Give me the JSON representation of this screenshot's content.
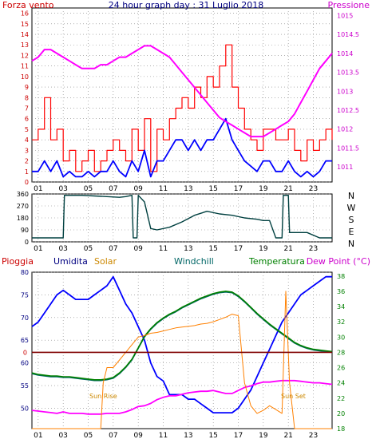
{
  "header": {
    "left_label": "Forza vento",
    "title": "24 hour graph day : 31 Luglio 2018",
    "right_label": "Pressione"
  },
  "direction_labels": [
    "N",
    "W",
    "S",
    "E",
    "N"
  ],
  "legend": {
    "pioggia": "Pioggia",
    "umidita": "Umidita",
    "solar": "Solar",
    "windchill": "Windchill",
    "temperatura": "Temperatura",
    "dewpoint": "Dew Point (°C)"
  },
  "annotations": {
    "sun_rise": "Sun Rise",
    "sun_set": "Sun Set"
  },
  "colors": {
    "wind_gust": "#ff0000",
    "wind_avg": "#0000ff",
    "pressure": "#ff00ff",
    "direction": "#004040",
    "humidity": "#0000ff",
    "solar": "#ff8000",
    "windchill": "#006666",
    "temperature": "#008000",
    "dewpoint": "#ff00ff",
    "rain": "#800000"
  },
  "chart_data": [
    {
      "type": "line",
      "x_ticks": [
        "01",
        "03",
        "05",
        "07",
        "09",
        "11",
        "13",
        "15",
        "17",
        "19",
        "21",
        "23"
      ],
      "left_axis": {
        "ylim": [
          0,
          16.5
        ],
        "ticks": [
          0,
          1,
          2,
          3,
          4,
          5,
          6,
          7,
          8,
          9,
          10,
          11,
          12,
          13,
          14,
          15,
          16
        ]
      },
      "right_axis": {
        "ylim": [
          1010.6,
          1015.2
        ],
        "ticks": [
          "1011",
          "1011.5",
          "1012",
          "1012.5",
          "1013",
          "1013.5",
          "1014",
          "1014.5",
          "1015"
        ]
      },
      "series": [
        {
          "key": "gust",
          "axis": "left",
          "x": [
            0,
            0.5,
            1,
            1.5,
            2,
            2.5,
            3,
            3.5,
            4,
            4.5,
            5,
            5.5,
            6,
            6.5,
            7,
            7.5,
            8,
            8.5,
            9,
            9.5,
            10,
            10.5,
            11,
            11.5,
            12,
            12.5,
            13,
            13.5,
            14,
            14.5,
            15,
            15.5,
            16,
            16.5,
            17,
            17.5,
            18,
            18.5,
            19,
            19.5,
            20,
            20.5,
            21,
            21.5,
            22,
            22.5,
            23,
            23.5,
            24
          ],
          "values": [
            4,
            5,
            8,
            4,
            5,
            2,
            3,
            1,
            2,
            3,
            1,
            2,
            3,
            4,
            3,
            2,
            5,
            3,
            6,
            1,
            5,
            4,
            6,
            7,
            8,
            7,
            9,
            8,
            10,
            9,
            11,
            13,
            9,
            7,
            5,
            4,
            3,
            5,
            5,
            4,
            4,
            5,
            3,
            2,
            4,
            3,
            4,
            5,
            4
          ]
        },
        {
          "key": "avg",
          "axis": "left",
          "x": [
            0,
            0.5,
            1,
            1.5,
            2,
            2.5,
            3,
            3.5,
            4,
            4.5,
            5,
            5.5,
            6,
            6.5,
            7,
            7.5,
            8,
            8.5,
            9,
            9.5,
            10,
            10.5,
            11,
            11.5,
            12,
            12.5,
            13,
            13.5,
            14,
            14.5,
            15,
            15.5,
            16,
            16.5,
            17,
            17.5,
            18,
            18.5,
            19,
            19.5,
            20,
            20.5,
            21,
            21.5,
            22,
            22.5,
            23,
            23.5,
            24
          ],
          "values": [
            1,
            1,
            2,
            1,
            2,
            0.5,
            1,
            0.5,
            0.5,
            1,
            0.5,
            1,
            1,
            2,
            1,
            0.5,
            2,
            1,
            3,
            0.5,
            2,
            2,
            3,
            4,
            4,
            3,
            4,
            3,
            4,
            4,
            5,
            6,
            4,
            3,
            2,
            1.5,
            1,
            2,
            2,
            1,
            1,
            2,
            1,
            0.5,
            1,
            0.5,
            1,
            2,
            2
          ]
        },
        {
          "key": "pressure",
          "axis": "right",
          "x": [
            0,
            0.5,
            1,
            1.5,
            2,
            2.5,
            3,
            3.5,
            4,
            4.5,
            5,
            5.5,
            6,
            6.5,
            7,
            7.5,
            8,
            8.5,
            9,
            9.5,
            10,
            10.5,
            11,
            11.5,
            12,
            12.5,
            13,
            13.5,
            14,
            14.5,
            15,
            15.5,
            16,
            16.5,
            17,
            17.5,
            18,
            18.5,
            19,
            19.5,
            20,
            20.5,
            21,
            21.5,
            22,
            22.5,
            23,
            23.5,
            24
          ],
          "values": [
            1013.8,
            1013.9,
            1014.1,
            1014.1,
            1014,
            1013.9,
            1013.8,
            1013.7,
            1013.6,
            1013.6,
            1013.6,
            1013.7,
            1013.7,
            1013.8,
            1013.9,
            1013.9,
            1014,
            1014.1,
            1014.2,
            1014.2,
            1014.1,
            1014,
            1013.9,
            1013.7,
            1013.5,
            1013.3,
            1013.1,
            1012.9,
            1012.7,
            1012.5,
            1012.3,
            1012.2,
            1012.1,
            1012,
            1011.9,
            1011.8,
            1011.8,
            1011.8,
            1011.9,
            1012,
            1012.1,
            1012.2,
            1012.4,
            1012.7,
            1013,
            1013.3,
            1013.6,
            1013.8,
            1014
          ]
        }
      ]
    },
    {
      "type": "line",
      "x_ticks": [
        "01",
        "03",
        "05",
        "07",
        "09",
        "11",
        "13",
        "15",
        "17",
        "19",
        "21",
        "23"
      ],
      "ylim": [
        0,
        360
      ],
      "y_ticks": [
        0,
        90,
        180,
        270,
        360
      ],
      "series": [
        {
          "key": "direction",
          "x": [
            0,
            1,
            2,
            2.5,
            2.6,
            4,
            5,
            6,
            7,
            7.5,
            8,
            8.1,
            8.4,
            8.5,
            9,
            9.5,
            10,
            11,
            12,
            13,
            14,
            15,
            16,
            17,
            18,
            18.5,
            19,
            19.5,
            20,
            20.1,
            20.5,
            20.6,
            21,
            22,
            23,
            24
          ],
          "values": [
            30,
            30,
            30,
            30,
            350,
            350,
            345,
            340,
            335,
            340,
            350,
            30,
            30,
            350,
            300,
            100,
            90,
            110,
            150,
            200,
            230,
            210,
            200,
            180,
            170,
            160,
            160,
            30,
            30,
            350,
            350,
            70,
            70,
            70,
            30,
            30
          ]
        }
      ]
    },
    {
      "type": "line",
      "x_ticks": [
        "01",
        "03",
        "05",
        "07",
        "09",
        "11",
        "13",
        "15",
        "17",
        "19",
        "21",
        "23"
      ],
      "left_axis": {
        "ylim": [
          45.5,
          80
        ],
        "ticks": [
          50,
          55,
          60,
          65,
          70,
          75,
          80
        ]
      },
      "right_axis": {
        "ylim": [
          18,
          38.5
        ],
        "ticks": [
          18,
          20,
          22,
          24,
          26,
          28,
          30,
          32,
          34,
          36,
          38
        ]
      },
      "series": [
        {
          "key": "humidity",
          "axis": "left",
          "x": [
            0,
            0.5,
            1,
            1.5,
            2,
            2.5,
            3,
            3.5,
            4,
            4.5,
            5,
            5.5,
            6,
            6.5,
            7,
            7.5,
            8,
            8.5,
            9,
            9.5,
            10,
            10.5,
            11,
            11.5,
            12,
            12.5,
            13,
            13.5,
            14,
            14.5,
            15,
            15.5,
            16,
            16.5,
            17,
            17.5,
            18,
            18.5,
            19,
            19.5,
            20,
            20.5,
            21,
            21.5,
            22,
            22.5,
            23,
            23.5,
            24
          ],
          "values": [
            68,
            69,
            71,
            73,
            75,
            76,
            75,
            74,
            74,
            74,
            75,
            76,
            77,
            79,
            76,
            73,
            71,
            68,
            65,
            60,
            57,
            56,
            53,
            53,
            53,
            52,
            52,
            51,
            50,
            49,
            49,
            49,
            49,
            50,
            52,
            54,
            57,
            60,
            63,
            66,
            69,
            71,
            73,
            75,
            76,
            77,
            78,
            79,
            79
          ]
        },
        {
          "key": "windchill",
          "axis": "right",
          "x": [
            0,
            0.5,
            1,
            1.5,
            2,
            2.5,
            3,
            3.5,
            4,
            4.5,
            5,
            5.5,
            6,
            6.5,
            7,
            7.5,
            8,
            8.5,
            9,
            9.5,
            10,
            10.5,
            11,
            11.5,
            12,
            12.5,
            13,
            13.5,
            14,
            14.5,
            15,
            15.5,
            16,
            16.5,
            17,
            17.5,
            18,
            18.5,
            19,
            19.5,
            20,
            20.5,
            21,
            21.5,
            22,
            22.5,
            23,
            23.5,
            24
          ],
          "values": [
            25.2,
            25,
            24.9,
            24.8,
            24.8,
            24.7,
            24.7,
            24.6,
            24.5,
            24.4,
            24.3,
            24.3,
            24.4,
            24.6,
            25.2,
            26,
            27,
            28.5,
            30,
            31,
            31.8,
            32.4,
            32.9,
            33.3,
            33.8,
            34.2,
            34.6,
            35,
            35.3,
            35.6,
            35.8,
            35.9,
            35.8,
            35.3,
            34.6,
            33.8,
            33,
            32.3,
            31.6,
            31,
            30.4,
            29.8,
            29.2,
            28.8,
            28.5,
            28.3,
            28.2,
            28.1,
            28
          ]
        },
        {
          "key": "temperature",
          "axis": "right",
          "x": [
            0,
            0.5,
            1,
            1.5,
            2,
            2.5,
            3,
            3.5,
            4,
            4.5,
            5,
            5.5,
            6,
            6.5,
            7,
            7.5,
            8,
            8.5,
            9,
            9.5,
            10,
            10.5,
            11,
            11.5,
            12,
            12.5,
            13,
            13.5,
            14,
            14.5,
            15,
            15.5,
            16,
            16.5,
            17,
            17.5,
            18,
            18.5,
            19,
            19.5,
            20,
            20.5,
            21,
            21.5,
            22,
            22.5,
            23,
            23.5,
            24
          ],
          "values": [
            25.3,
            25.1,
            25,
            24.9,
            24.9,
            24.8,
            24.8,
            24.7,
            24.6,
            24.5,
            24.4,
            24.4,
            24.5,
            24.7,
            25.3,
            26.1,
            27.1,
            28.6,
            30.1,
            31.1,
            31.9,
            32.5,
            33,
            33.4,
            33.9,
            34.3,
            34.7,
            35.1,
            35.4,
            35.7,
            35.9,
            36,
            35.9,
            35.4,
            34.7,
            33.9,
            33.1,
            32.4,
            31.7,
            31.1,
            30.5,
            29.9,
            29.3,
            28.9,
            28.6,
            28.4,
            28.3,
            28.2,
            28.1
          ]
        },
        {
          "key": "dewpoint",
          "axis": "right",
          "x": [
            0,
            0.5,
            1,
            1.5,
            2,
            2.5,
            3,
            3.5,
            4,
            4.5,
            5,
            5.5,
            6,
            6.5,
            7,
            7.5,
            8,
            8.5,
            9,
            9.5,
            10,
            10.5,
            11,
            11.5,
            12,
            12.5,
            13,
            13.5,
            14,
            14.5,
            15,
            15.5,
            16,
            16.5,
            17,
            17.5,
            18,
            18.5,
            19,
            19.5,
            20,
            20.5,
            21,
            21.5,
            22,
            22.5,
            23,
            23.5,
            24
          ],
          "values": [
            20.4,
            20.3,
            20.2,
            20.1,
            20,
            20.2,
            20,
            20,
            20,
            19.9,
            19.9,
            19.9,
            20,
            20,
            20,
            20.2,
            20.5,
            20.9,
            21,
            21.3,
            21.8,
            22.1,
            22.3,
            22.3,
            22.5,
            22.7,
            22.8,
            22.9,
            22.9,
            23,
            22.8,
            22.6,
            22.6,
            23,
            23.4,
            23.6,
            23.9,
            24.1,
            24.1,
            24.2,
            24.3,
            24.3,
            24.3,
            24.2,
            24.1,
            24,
            24,
            23.9,
            23.8
          ]
        },
        {
          "key": "solar",
          "axis": "right",
          "x": [
            0,
            5.5,
            5.7,
            6,
            6.5,
            7,
            7.5,
            8,
            8.5,
            9,
            9.5,
            10,
            10.5,
            11,
            11.5,
            12,
            12.5,
            13,
            13.5,
            14,
            14.5,
            15,
            15.5,
            16,
            16.5,
            17,
            17.5,
            18,
            18.5,
            19,
            19.5,
            20,
            20.3,
            20.6,
            21,
            24
          ],
          "values": [
            18,
            18,
            24,
            26,
            26,
            27,
            28,
            29,
            30,
            30.2,
            30.5,
            30.6,
            30.8,
            31,
            31.2,
            31.3,
            31.4,
            31.5,
            31.7,
            31.8,
            32,
            32.3,
            32.6,
            33,
            32.8,
            24,
            21,
            20,
            20.4,
            21,
            20.5,
            20,
            36,
            24,
            18,
            18
          ]
        },
        {
          "key": "rain",
          "axis": "right",
          "x": [
            0,
            24
          ],
          "values": [
            28,
            28
          ]
        }
      ]
    }
  ]
}
